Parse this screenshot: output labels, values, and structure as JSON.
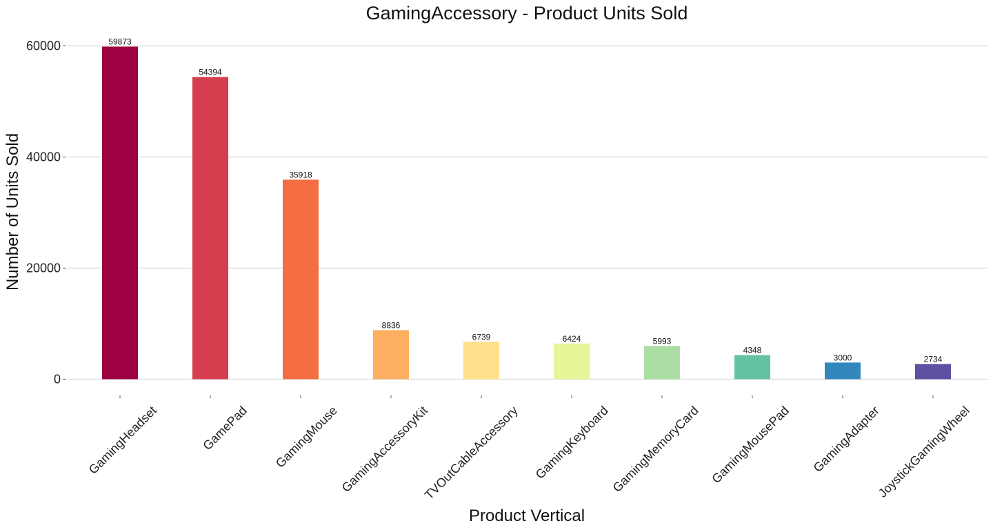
{
  "chart_data": {
    "type": "bar",
    "title": "GamingAccessory - Product Units Sold",
    "xlabel": "Product Vertical",
    "ylabel": "Number of Units Sold",
    "categories": [
      "GamingHeadset",
      "GamePad",
      "GamingMouse",
      "GamingAccessoryKit",
      "TVOutCableAccessory",
      "GamingKeyboard",
      "GamingMemoryCard",
      "GamingMousePad",
      "GamingAdapter",
      "JoystickGamingWheel"
    ],
    "values": [
      59873,
      54394,
      35918,
      8836,
      6739,
      6424,
      5993,
      4348,
      3000,
      2734
    ],
    "colors": [
      "#9e0142",
      "#d53e4f",
      "#f46d43",
      "#fdae61",
      "#fee08b",
      "#e6f598",
      "#abdda4",
      "#66c2a5",
      "#3288bd",
      "#5e4fa2"
    ],
    "yticks": [
      "0",
      "20000",
      "40000",
      "60000"
    ],
    "ytick_values": [
      0,
      20000,
      40000,
      60000
    ],
    "ylim": [
      0,
      60000
    ],
    "grid": "horizontal",
    "legend": "none"
  }
}
